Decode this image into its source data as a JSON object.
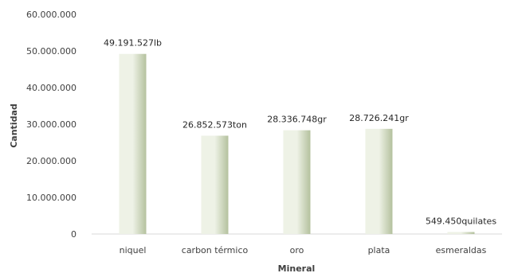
{
  "chart_data": {
    "type": "bar",
    "title": "",
    "xlabel": "Mineral",
    "ylabel": "Cantidad",
    "ylim": [
      0,
      60000000
    ],
    "y_ticks": [
      0,
      10000000,
      20000000,
      30000000,
      40000000,
      50000000,
      60000000
    ],
    "y_tick_labels": [
      "0",
      "10.000.000",
      "20.000.000",
      "30.000.000",
      "40.000.000",
      "50.000.000",
      "60.000.000"
    ],
    "grid": false,
    "legend": "none",
    "categories": [
      "niquel",
      "carbon térmico",
      "oro",
      "plata",
      "esmeraldas"
    ],
    "values": [
      49191527,
      26852573,
      28336748,
      28726241,
      549450
    ],
    "data_labels": [
      "49.191.527lb",
      "26.852.573ton",
      "28.336.748gr",
      "28.726.241gr",
      "549.450quilates"
    ],
    "bar_color_light": "#eef2e6",
    "bar_color_dark": "#b4c19e",
    "axis_color": "#d9d9d9"
  }
}
